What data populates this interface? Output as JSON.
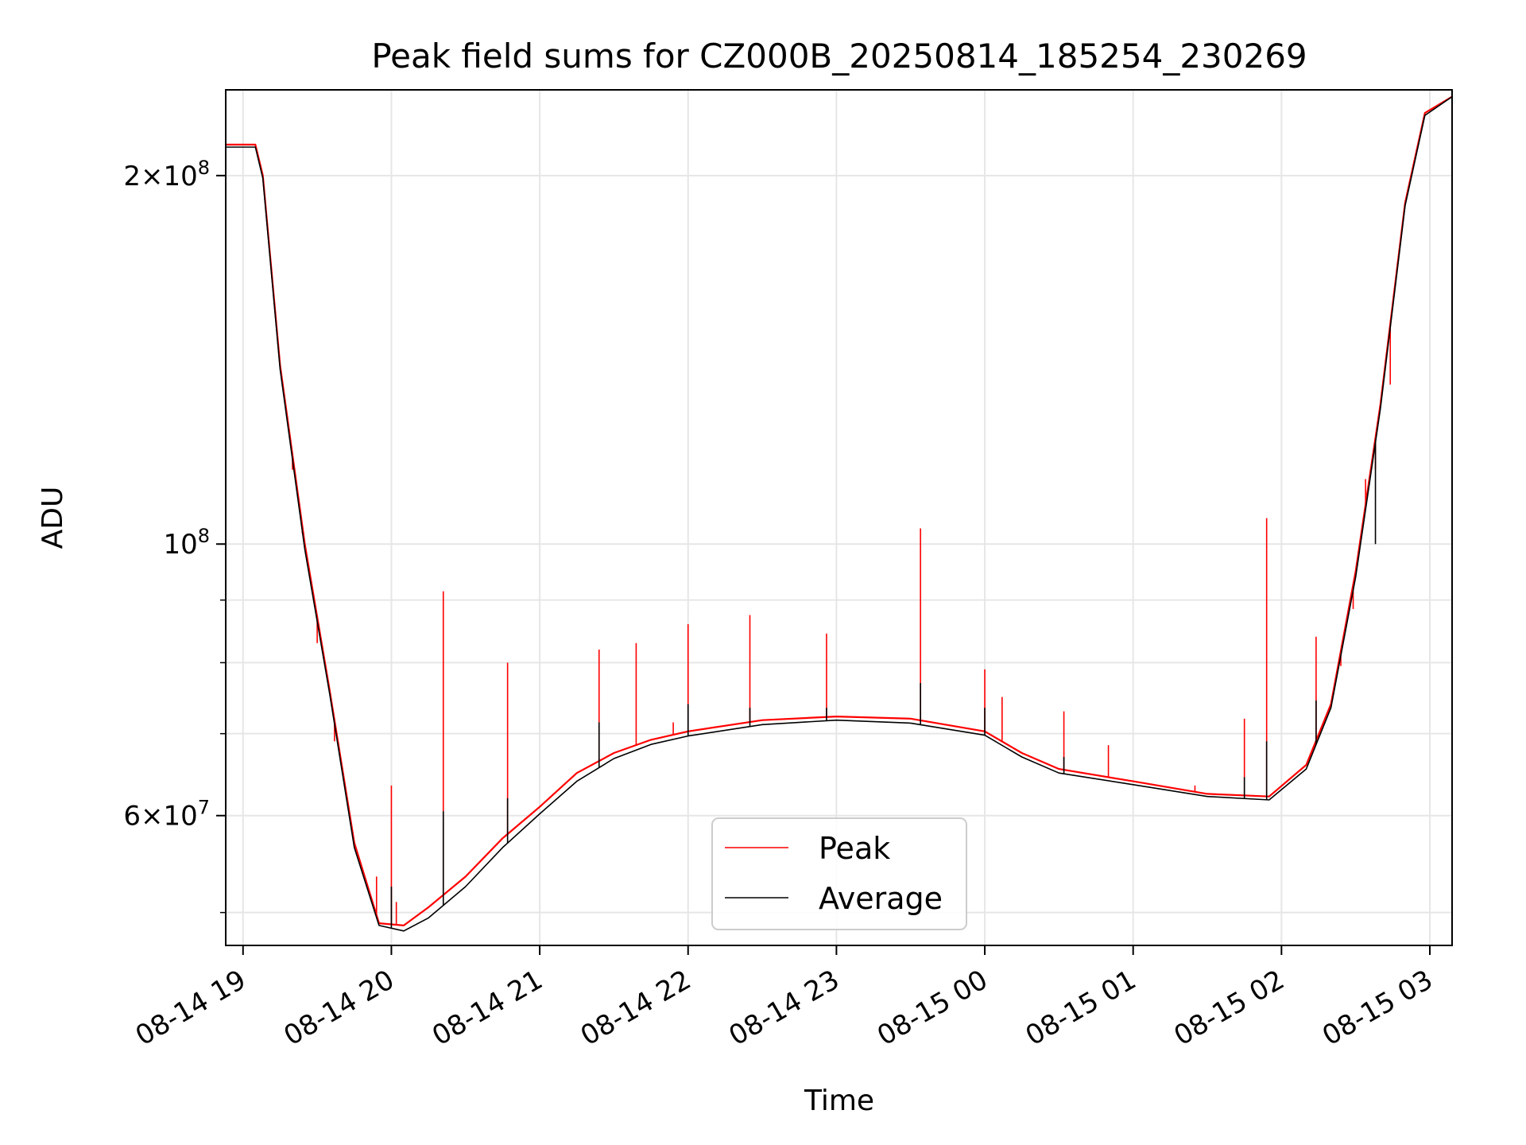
{
  "chart_data": {
    "type": "line",
    "title": "Peak field sums for CZ000B_20250814_185254_230269",
    "xlabel": "Time",
    "ylabel": "ADU",
    "yscale": "log",
    "xlim": [
      "2025-08-14 18:53",
      "2025-08-15 03:09"
    ],
    "ylim": [
      47000000,
      235000000
    ],
    "grid": true,
    "legend": "lower-center",
    "x_ticks": [
      "08-14 19",
      "08-14 20",
      "08-14 21",
      "08-14 22",
      "08-14 23",
      "08-15 00",
      "08-15 01",
      "08-15 02",
      "08-15 03"
    ],
    "y_ticks": [
      {
        "value": 200000000,
        "label": "2×10^8"
      },
      {
        "value": 100000000,
        "label": "10^8"
      },
      {
        "value": 60000000,
        "label": "6×10^7"
      }
    ],
    "y_minor_ticks": [
      50000000,
      70000000,
      80000000,
      90000000
    ],
    "series": [
      {
        "name": "Peak",
        "color": "#ff0000",
        "points": [
          [
            "2025-08-14 18:53",
            212000000
          ],
          [
            "2025-08-14 19:05",
            212000000
          ],
          [
            "2025-08-14 19:08",
            200000000
          ],
          [
            "2025-08-14 19:15",
            140000000
          ],
          [
            "2025-08-14 19:25",
            100000000
          ],
          [
            "2025-08-14 19:35",
            76000000
          ],
          [
            "2025-08-14 19:45",
            57000000
          ],
          [
            "2025-08-14 19:55",
            49000000
          ],
          [
            "2025-08-14 20:05",
            48800000
          ],
          [
            "2025-08-14 20:15",
            50500000
          ],
          [
            "2025-08-14 20:30",
            53500000
          ],
          [
            "2025-08-14 20:45",
            57500000
          ],
          [
            "2025-08-14 21:00",
            61000000
          ],
          [
            "2025-08-14 21:15",
            65000000
          ],
          [
            "2025-08-14 21:30",
            67500000
          ],
          [
            "2025-08-14 21:45",
            69200000
          ],
          [
            "2025-08-14 22:00",
            70300000
          ],
          [
            "2025-08-14 22:30",
            71800000
          ],
          [
            "2025-08-14 23:00",
            72300000
          ],
          [
            "2025-08-14 23:30",
            72000000
          ],
          [
            "2025-08-15 00:00",
            70300000
          ],
          [
            "2025-08-15 00:15",
            67500000
          ],
          [
            "2025-08-15 00:30",
            65500000
          ],
          [
            "2025-08-15 01:00",
            64000000
          ],
          [
            "2025-08-15 01:30",
            62500000
          ],
          [
            "2025-08-15 01:55",
            62200000
          ],
          [
            "2025-08-15 02:10",
            66000000
          ],
          [
            "2025-08-15 02:20",
            74000000
          ],
          [
            "2025-08-15 02:30",
            95000000
          ],
          [
            "2025-08-15 02:40",
            130000000
          ],
          [
            "2025-08-15 02:50",
            190000000
          ],
          [
            "2025-08-15 02:58",
            225000000
          ],
          [
            "2025-08-15 03:09",
            232000000
          ]
        ],
        "spikes": [
          [
            "2025-08-14 19:20",
            115000000
          ],
          [
            "2025-08-14 19:24",
            102000000
          ],
          [
            "2025-08-14 19:30",
            83000000
          ],
          [
            "2025-08-14 19:37",
            69000000
          ],
          [
            "2025-08-14 19:54",
            53500000
          ],
          [
            "2025-08-14 20:00",
            63500000
          ],
          [
            "2025-08-14 20:02",
            51000000
          ],
          [
            "2025-08-14 20:21",
            91500000
          ],
          [
            "2025-08-14 20:47",
            80000000
          ],
          [
            "2025-08-14 21:24",
            82000000
          ],
          [
            "2025-08-14 21:39",
            83000000
          ],
          [
            "2025-08-14 21:54",
            71500000
          ],
          [
            "2025-08-14 22:00",
            86000000
          ],
          [
            "2025-08-14 22:25",
            87500000
          ],
          [
            "2025-08-14 22:56",
            84500000
          ],
          [
            "2025-08-14 23:34",
            103000000
          ],
          [
            "2025-08-15 00:00",
            79000000
          ],
          [
            "2025-08-15 00:07",
            75000000
          ],
          [
            "2025-08-15 00:32",
            73000000
          ],
          [
            "2025-08-15 00:50",
            68500000
          ],
          [
            "2025-08-15 01:25",
            63500000
          ],
          [
            "2025-08-15 01:45",
            72000000
          ],
          [
            "2025-08-15 01:54",
            105000000
          ],
          [
            "2025-08-15 02:14",
            84000000
          ],
          [
            "2025-08-15 02:24",
            79500000
          ],
          [
            "2025-08-15 02:29",
            88500000
          ],
          [
            "2025-08-15 02:34",
            113000000
          ],
          [
            "2025-08-15 02:38",
            115000000
          ],
          [
            "2025-08-15 02:44",
            135000000
          ]
        ]
      },
      {
        "name": "Average",
        "color": "#000000",
        "points": [
          [
            "2025-08-14 18:53",
            211000000
          ],
          [
            "2025-08-14 19:05",
            211000000
          ],
          [
            "2025-08-14 19:08",
            199000000
          ],
          [
            "2025-08-14 19:15",
            139000000
          ],
          [
            "2025-08-14 19:25",
            99000000
          ],
          [
            "2025-08-14 19:35",
            75500000
          ],
          [
            "2025-08-14 19:45",
            56500000
          ],
          [
            "2025-08-14 19:55",
            48800000
          ],
          [
            "2025-08-14 20:05",
            48300000
          ],
          [
            "2025-08-14 20:15",
            49500000
          ],
          [
            "2025-08-14 20:30",
            52500000
          ],
          [
            "2025-08-14 20:45",
            56500000
          ],
          [
            "2025-08-14 21:00",
            60200000
          ],
          [
            "2025-08-14 21:15",
            64000000
          ],
          [
            "2025-08-14 21:30",
            66800000
          ],
          [
            "2025-08-14 21:45",
            68600000
          ],
          [
            "2025-08-14 22:00",
            69700000
          ],
          [
            "2025-08-14 22:30",
            71200000
          ],
          [
            "2025-08-14 23:00",
            71800000
          ],
          [
            "2025-08-14 23:30",
            71400000
          ],
          [
            "2025-08-15 00:00",
            69800000
          ],
          [
            "2025-08-15 00:15",
            67000000
          ],
          [
            "2025-08-15 00:30",
            65000000
          ],
          [
            "2025-08-15 01:00",
            63600000
          ],
          [
            "2025-08-15 01:30",
            62200000
          ],
          [
            "2025-08-15 01:55",
            61800000
          ],
          [
            "2025-08-15 02:10",
            65500000
          ],
          [
            "2025-08-15 02:20",
            73500000
          ],
          [
            "2025-08-15 02:30",
            94000000
          ],
          [
            "2025-08-15 02:40",
            129000000
          ],
          [
            "2025-08-15 02:50",
            189000000
          ],
          [
            "2025-08-15 02:58",
            224000000
          ],
          [
            "2025-08-15 03:09",
            232000000
          ]
        ],
        "spikes": [
          [
            "2025-08-14 20:00",
            52500000
          ],
          [
            "2025-08-14 20:21",
            60500000
          ],
          [
            "2025-08-14 20:47",
            62000000
          ],
          [
            "2025-08-14 21:24",
            71500000
          ],
          [
            "2025-08-14 22:00",
            74000000
          ],
          [
            "2025-08-14 22:25",
            73500000
          ],
          [
            "2025-08-14 22:56",
            73500000
          ],
          [
            "2025-08-14 23:34",
            77000000
          ],
          [
            "2025-08-15 00:00",
            73500000
          ],
          [
            "2025-08-15 00:32",
            67000000
          ],
          [
            "2025-08-15 01:45",
            64500000
          ],
          [
            "2025-08-15 01:54",
            69000000
          ],
          [
            "2025-08-15 02:14",
            74500000
          ],
          [
            "2025-08-15 02:38",
            100000000
          ]
        ]
      }
    ]
  }
}
